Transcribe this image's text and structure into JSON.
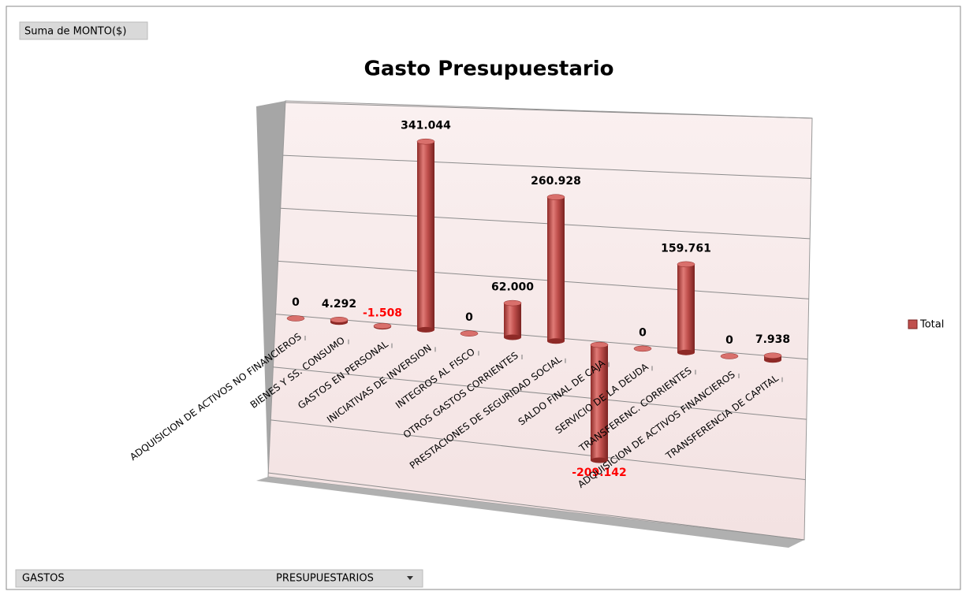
{
  "chart_data": {
    "type": "bar3d",
    "title": "Gasto Presupuestario",
    "field_label": "Suma de MONTO($)",
    "filter_label": "GASTOS",
    "filter_value": "PRESUPUESTARIOS",
    "categories": [
      "ADQUISICION DE ACTIVOS NO FINANCIEROS",
      "BIENES  Y SS. CONSUMO",
      "GASTOS EN PERSONAL",
      "INICIATIVAS DE INVERSION",
      "INTEGROS AL FISCO",
      "OTROS GASTOS CORRIENTES",
      "PRESTACIONES DE SEGURIDAD SOCIAL",
      "SALDO FINAL DE CAJA",
      "SERVICIO DE LA DEUDA",
      "TRANSFERENC. CORRIENTES",
      "ADQUISICION DE ACTIVOS  FINANCIEROS",
      "TRANSFERENCIA DE CAPITAL"
    ],
    "series": [
      {
        "name": "Total",
        "color": "#c0504d",
        "values": [
          0,
          4.292,
          -1.508,
          341.044,
          0,
          62.0,
          260.928,
          -209.142,
          0,
          159.761,
          0,
          7.938
        ],
        "value_labels": [
          "0",
          "4.292",
          "-1.508",
          "341.044",
          "0",
          "62.000",
          "260.928",
          "-209.142",
          "0",
          "159.761",
          "0",
          "7.938"
        ]
      }
    ],
    "negative_label_color": "#ff0000",
    "legend": "right"
  }
}
